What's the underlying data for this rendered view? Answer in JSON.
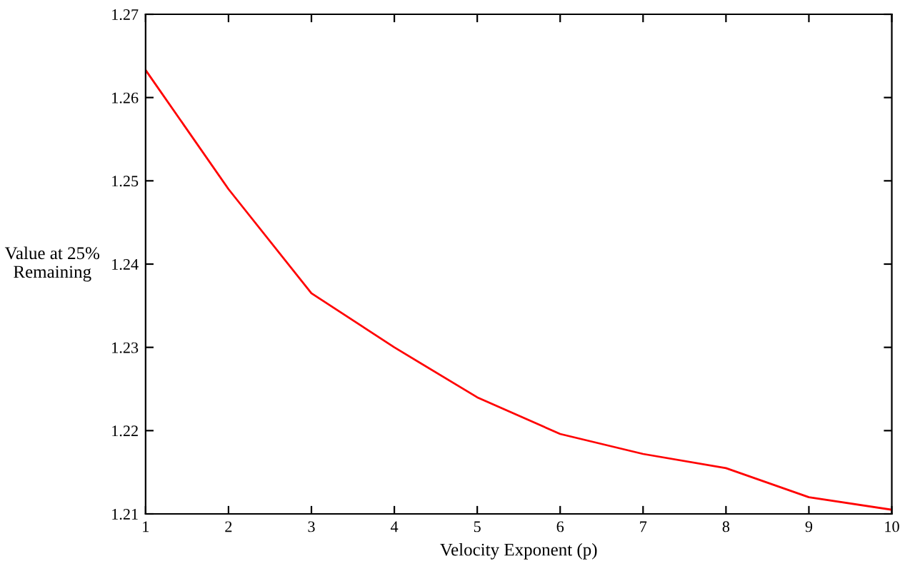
{
  "chart_data": {
    "type": "line",
    "xlabel": "Velocity Exponent (p)",
    "ylabel": "Value at 25%\nRemaining",
    "x": [
      1,
      2,
      3,
      4,
      5,
      6,
      7,
      8,
      9,
      10
    ],
    "series": [
      {
        "color": "#ff0000",
        "values": [
          1.2633,
          1.249,
          1.2365,
          1.23,
          1.224,
          1.2196,
          1.2172,
          1.2155,
          1.212,
          1.2105
        ]
      }
    ],
    "xlim": [
      1,
      10
    ],
    "ylim": [
      1.21,
      1.27
    ],
    "xticks": [
      1,
      2,
      3,
      4,
      5,
      6,
      7,
      8,
      9,
      10
    ],
    "yticks": [
      1.21,
      1.22,
      1.23,
      1.24,
      1.25,
      1.26,
      1.27
    ],
    "grid": false,
    "legend": false,
    "marker": "none",
    "line_style": "solid"
  }
}
